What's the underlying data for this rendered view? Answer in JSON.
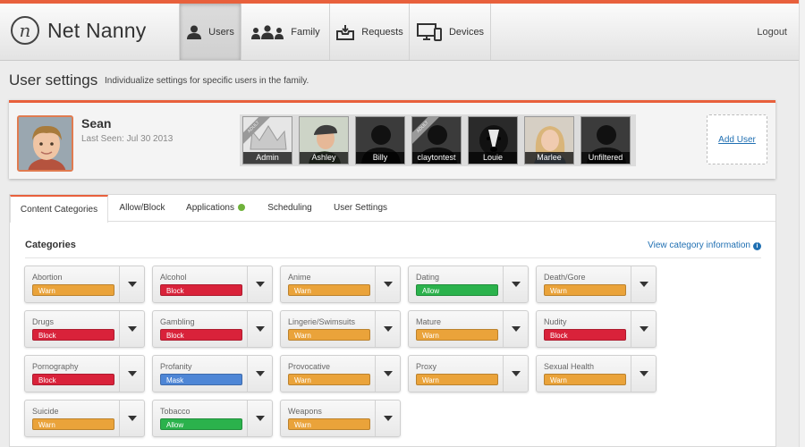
{
  "brand": {
    "logo_glyph": "n",
    "name": "Net Nanny"
  },
  "nav": {
    "tabs": [
      {
        "label": "Users",
        "icon": "user-icon",
        "active": true
      },
      {
        "label": "Family",
        "icon": "family-icon",
        "active": false
      },
      {
        "label": "Requests",
        "icon": "inbox-icon",
        "active": false
      },
      {
        "label": "Devices",
        "icon": "devices-icon",
        "active": false
      }
    ],
    "logout": "Logout"
  },
  "page": {
    "title": "User settings",
    "subtitle": "Individualize settings for specific users in the family."
  },
  "user": {
    "name": "Sean",
    "last_seen": "Last Seen: Jul 30 2013"
  },
  "users": [
    {
      "label": "Admin",
      "ribbon": "ADULT"
    },
    {
      "label": "Ashley",
      "ribbon": ""
    },
    {
      "label": "Billy",
      "ribbon": ""
    },
    {
      "label": "claytontest",
      "ribbon": "ADULT"
    },
    {
      "label": "Louie",
      "ribbon": ""
    },
    {
      "label": "Marlee",
      "ribbon": ""
    },
    {
      "label": "Unfiltered",
      "ribbon": ""
    }
  ],
  "add_user": "Add User",
  "tabs": {
    "content_categories": "Content Categories",
    "allow_block": "Allow/Block",
    "applications": "Applications",
    "scheduling": "Scheduling",
    "user_settings": "User Settings"
  },
  "categories_heading": "Categories",
  "view_info": "View category information",
  "info_glyph": "i",
  "colors": {
    "accent": "#e8603c",
    "warn": "#eaa33a",
    "block": "#d9223a",
    "allow": "#2bb24c",
    "mask": "#4e86d6",
    "link": "#1f6fb2"
  },
  "categories": [
    {
      "name": "Abortion",
      "status": "Warn"
    },
    {
      "name": "Alcohol",
      "status": "Block"
    },
    {
      "name": "Anime",
      "status": "Warn"
    },
    {
      "name": "Dating",
      "status": "Allow"
    },
    {
      "name": "Death/Gore",
      "status": "Warn"
    },
    {
      "name": "Drugs",
      "status": "Block"
    },
    {
      "name": "Gambling",
      "status": "Block"
    },
    {
      "name": "Lingerie/Swimsuits",
      "status": "Warn"
    },
    {
      "name": "Mature",
      "status": "Warn"
    },
    {
      "name": "Nudity",
      "status": "Block"
    },
    {
      "name": "Pornography",
      "status": "Block"
    },
    {
      "name": "Profanity",
      "status": "Mask"
    },
    {
      "name": "Provocative",
      "status": "Warn"
    },
    {
      "name": "Proxy",
      "status": "Warn"
    },
    {
      "name": "Sexual Health",
      "status": "Warn"
    },
    {
      "name": "Suicide",
      "status": "Warn"
    },
    {
      "name": "Tobacco",
      "status": "Allow"
    },
    {
      "name": "Weapons",
      "status": "Warn"
    }
  ]
}
